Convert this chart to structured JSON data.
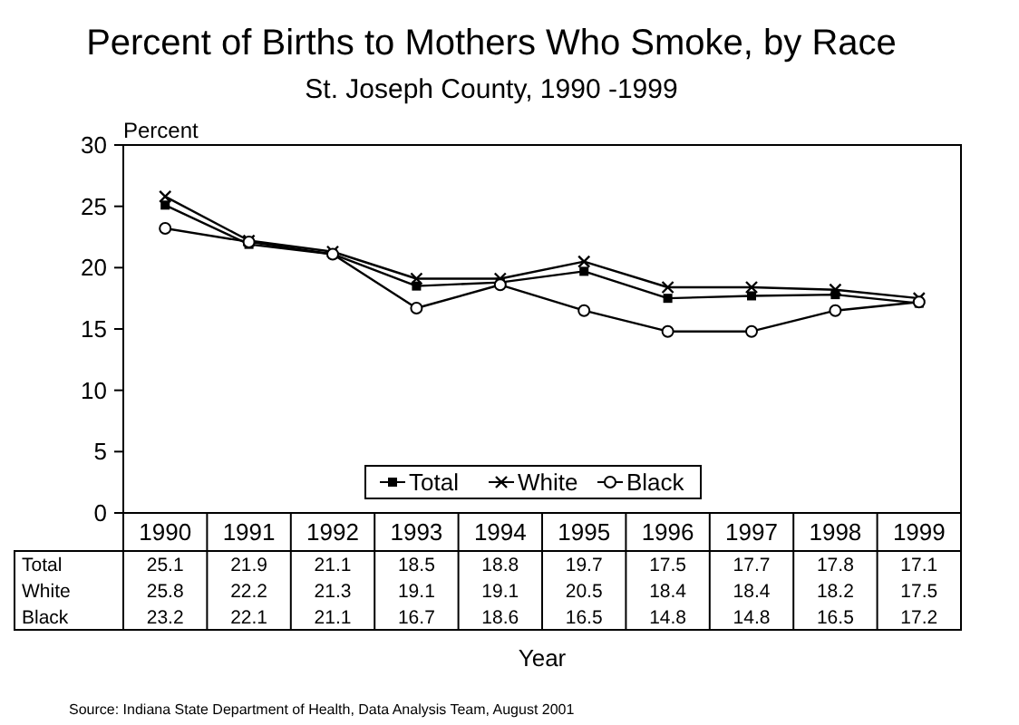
{
  "chart_data": {
    "type": "line",
    "title": "Percent of Births to Mothers Who Smoke, by Race",
    "subtitle": "St. Joseph County, 1990 -1999",
    "ylabel": "Percent",
    "xlabel": "Year",
    "categories": [
      "1990",
      "1991",
      "1992",
      "1993",
      "1994",
      "1995",
      "1996",
      "1997",
      "1998",
      "1999"
    ],
    "series": [
      {
        "name": "Total",
        "color": "#000000",
        "marker": "square",
        "values": [
          25.1,
          21.9,
          21.1,
          18.5,
          18.8,
          19.7,
          17.5,
          17.7,
          17.8,
          17.1
        ]
      },
      {
        "name": "White",
        "color": "#000000",
        "marker": "cross",
        "values": [
          25.8,
          22.2,
          21.3,
          19.1,
          19.1,
          20.5,
          18.4,
          18.4,
          18.2,
          17.5
        ]
      },
      {
        "name": "Black",
        "color": "#000000",
        "marker": "circle",
        "values": [
          23.2,
          22.1,
          21.1,
          16.7,
          18.6,
          16.5,
          14.8,
          14.8,
          16.5,
          17.2
        ]
      }
    ],
    "ylim": [
      0,
      30
    ],
    "yticks": [
      0,
      5,
      10,
      15,
      20,
      25,
      30
    ],
    "legend": "bottom",
    "data_labels": true,
    "grid": false,
    "annotations": [
      "Source:  Indiana State Department of Health, Data Analysis Team, August 2001"
    ]
  }
}
